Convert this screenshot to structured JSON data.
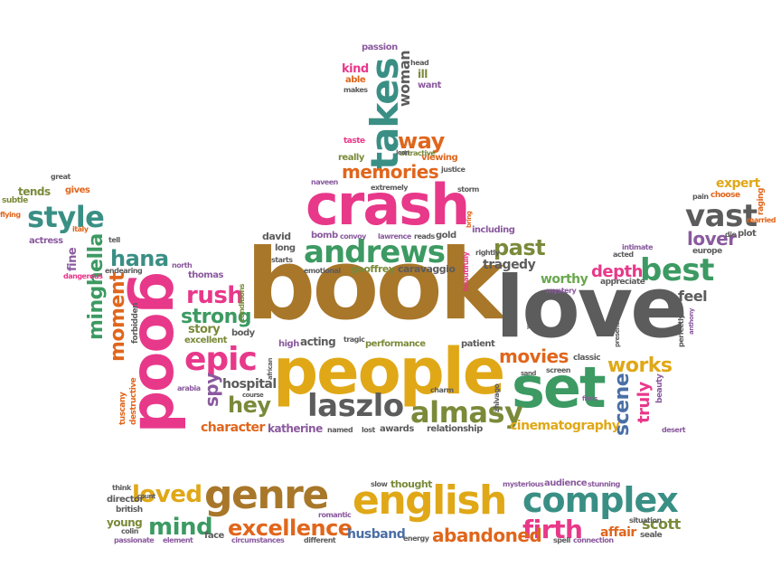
{
  "words": {
    "book": "book",
    "love": "love",
    "people": "people",
    "crash": "crash",
    "good": "good",
    "set": "set",
    "english": "english",
    "genre": "genre",
    "complex": "complex",
    "takes": "takes",
    "andrews": "andrews",
    "epic": "epic",
    "best": "best",
    "vast": "vast",
    "style": "style",
    "laszlo": "laszlo",
    "almasy": "almasy",
    "memories": "memories",
    "excellence": "excellence",
    "loved": "loved",
    "mind": "mind",
    "firth": "firth",
    "abandoned": "abandoned",
    "rush": "rush",
    "strong": "strong",
    "hana": "hana",
    "minghella": "minghella",
    "moment": "moment",
    "way": "way",
    "woman": "woman",
    "past": "past",
    "movies": "movies",
    "works": "works",
    "scene": "scene",
    "hey": "hey",
    "lover": "lover",
    "depth": "depth",
    "worthy": "worthy",
    "tragedy": "tragedy",
    "character": "character",
    "katherine": "katherine",
    "cinematography": "cinematography",
    "spy": "spy",
    "hospital": "hospital",
    "feel": "feel",
    "truly": "truly",
    "expert": "expert",
    "story": "story",
    "husband": "husband",
    "scott": "scott",
    "affair": "affair",
    "face": "face",
    "director": "director",
    "young": "young",
    "british": "british",
    "passion": "passion",
    "kind": "kind",
    "able": "able",
    "ill": "ill",
    "want": "want",
    "taste": "taste",
    "really": "really",
    "viewing": "viewing",
    "tends": "tends",
    "gives": "gives",
    "subtle": "subtle",
    "actress": "actress",
    "david": "david",
    "bomb": "bomb",
    "gold": "gold",
    "long": "long",
    "including": "including",
    "geoffrey": "geoffrey",
    "caravaggio": "caravaggio",
    "thomas": "thomas",
    "body": "body",
    "excellent": "excellent",
    "high": "high",
    "acting": "acting",
    "performance": "performance",
    "patient": "patient",
    "awards": "awards",
    "named": "named",
    "relationship": "relationship",
    "classic": "classic",
    "appreciate": "appreciate",
    "plot": "plot",
    "europe": "europe",
    "great": "great",
    "thought": "thought",
    "slow": "slow",
    "audience": "audience",
    "mysterious": "mysterious",
    "stunning": "stunning",
    "romantic": "romantic",
    "different": "different",
    "energy": "energy",
    "element": "element",
    "colin": "colin",
    "passionate": "passionate",
    "spell": "spell",
    "situation": "situation",
    "connection": "connection",
    "seale": "seale",
    "circumstances": "circumstances",
    "think": "think",
    "attractive": "attractive",
    "extremely": "extremely",
    "naveen": "naveen",
    "justice": "justice",
    "storm": "storm",
    "bring": "bring",
    "convoy": "convoy",
    "lawrence": "lawrence",
    "reads": "reads",
    "conditions": "conditions",
    "tuscany": "tuscany",
    "destructive": "destructive",
    "forbidden": "forbidden",
    "dangerous": "dangerous",
    "fine": "fine",
    "arabia": "arabia",
    "course": "course",
    "african": "african",
    "tragic": "tragic",
    "charm": "charm",
    "zhivago": "zhivago",
    "lost": "lost",
    "intimate": "intimate",
    "acted": "acted",
    "die": "die",
    "married": "married",
    "raging": "raging",
    "choose": "choose",
    "pain": "pain",
    "perfectly": "perfectly",
    "beauty": "beauty",
    "desert": "desert",
    "makes": "makes",
    "head": "head",
    "lean": "lean",
    "starts": "starts",
    "emotional": "emotional",
    "north": "north",
    "italy": "italy",
    "tell": "tell",
    "endearing": "endearing",
    "flying": "flying",
    "rightly": "rightly",
    "mystery": "mystery",
    "beautifully": "beautifully",
    "screen": "screen",
    "count": "count",
    "presented": "presented",
    "films": "films",
    "anthony": "anthony",
    "sand": "sand",
    "wrote": "wrote"
  },
  "colors": {
    "pink": "#e8388a",
    "brown": "#a8772a",
    "gold": "#e0a817",
    "green": "#3c9a62",
    "teal": "#3a8f85",
    "orange": "#e0661c",
    "gray": "#5c5c5c",
    "purple": "#8a5a9e",
    "blue": "#4a6fa5",
    "olive": "#7a8a3a",
    "background": "#ffffff"
  }
}
